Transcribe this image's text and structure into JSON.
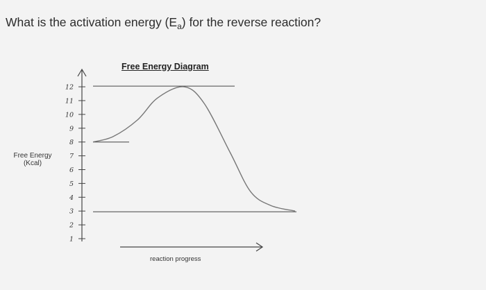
{
  "question": {
    "prefix": "What is the activation energy (E",
    "subscript": "a",
    "suffix": ") for the reverse reaction?"
  },
  "chart_data": {
    "type": "line",
    "title": "Free Energy Diagram",
    "ylabel_line1": "Free Energy",
    "ylabel_line2": "(Kcal)",
    "xlabel": "reaction progress",
    "yticks": [
      "1",
      "2",
      "3",
      "4",
      "5",
      "6",
      "7",
      "8",
      "9",
      "10",
      "11",
      "12"
    ],
    "ylim": [
      1,
      12
    ],
    "grid": false,
    "reference_lines": {
      "reactants": 8,
      "transition_state": 12,
      "products": 3
    },
    "series": [
      {
        "x": [
          0,
          0.1,
          0.22,
          0.32,
          0.45,
          0.55,
          0.68,
          0.78,
          0.88,
          1.0
        ],
        "y": [
          8.0,
          8.4,
          9.6,
          11.2,
          12.0,
          10.8,
          7.2,
          4.4,
          3.4,
          3.0
        ]
      }
    ],
    "colors": {
      "curve": "#777777",
      "axis": "#444444",
      "text": "#2c2c2c"
    }
  }
}
